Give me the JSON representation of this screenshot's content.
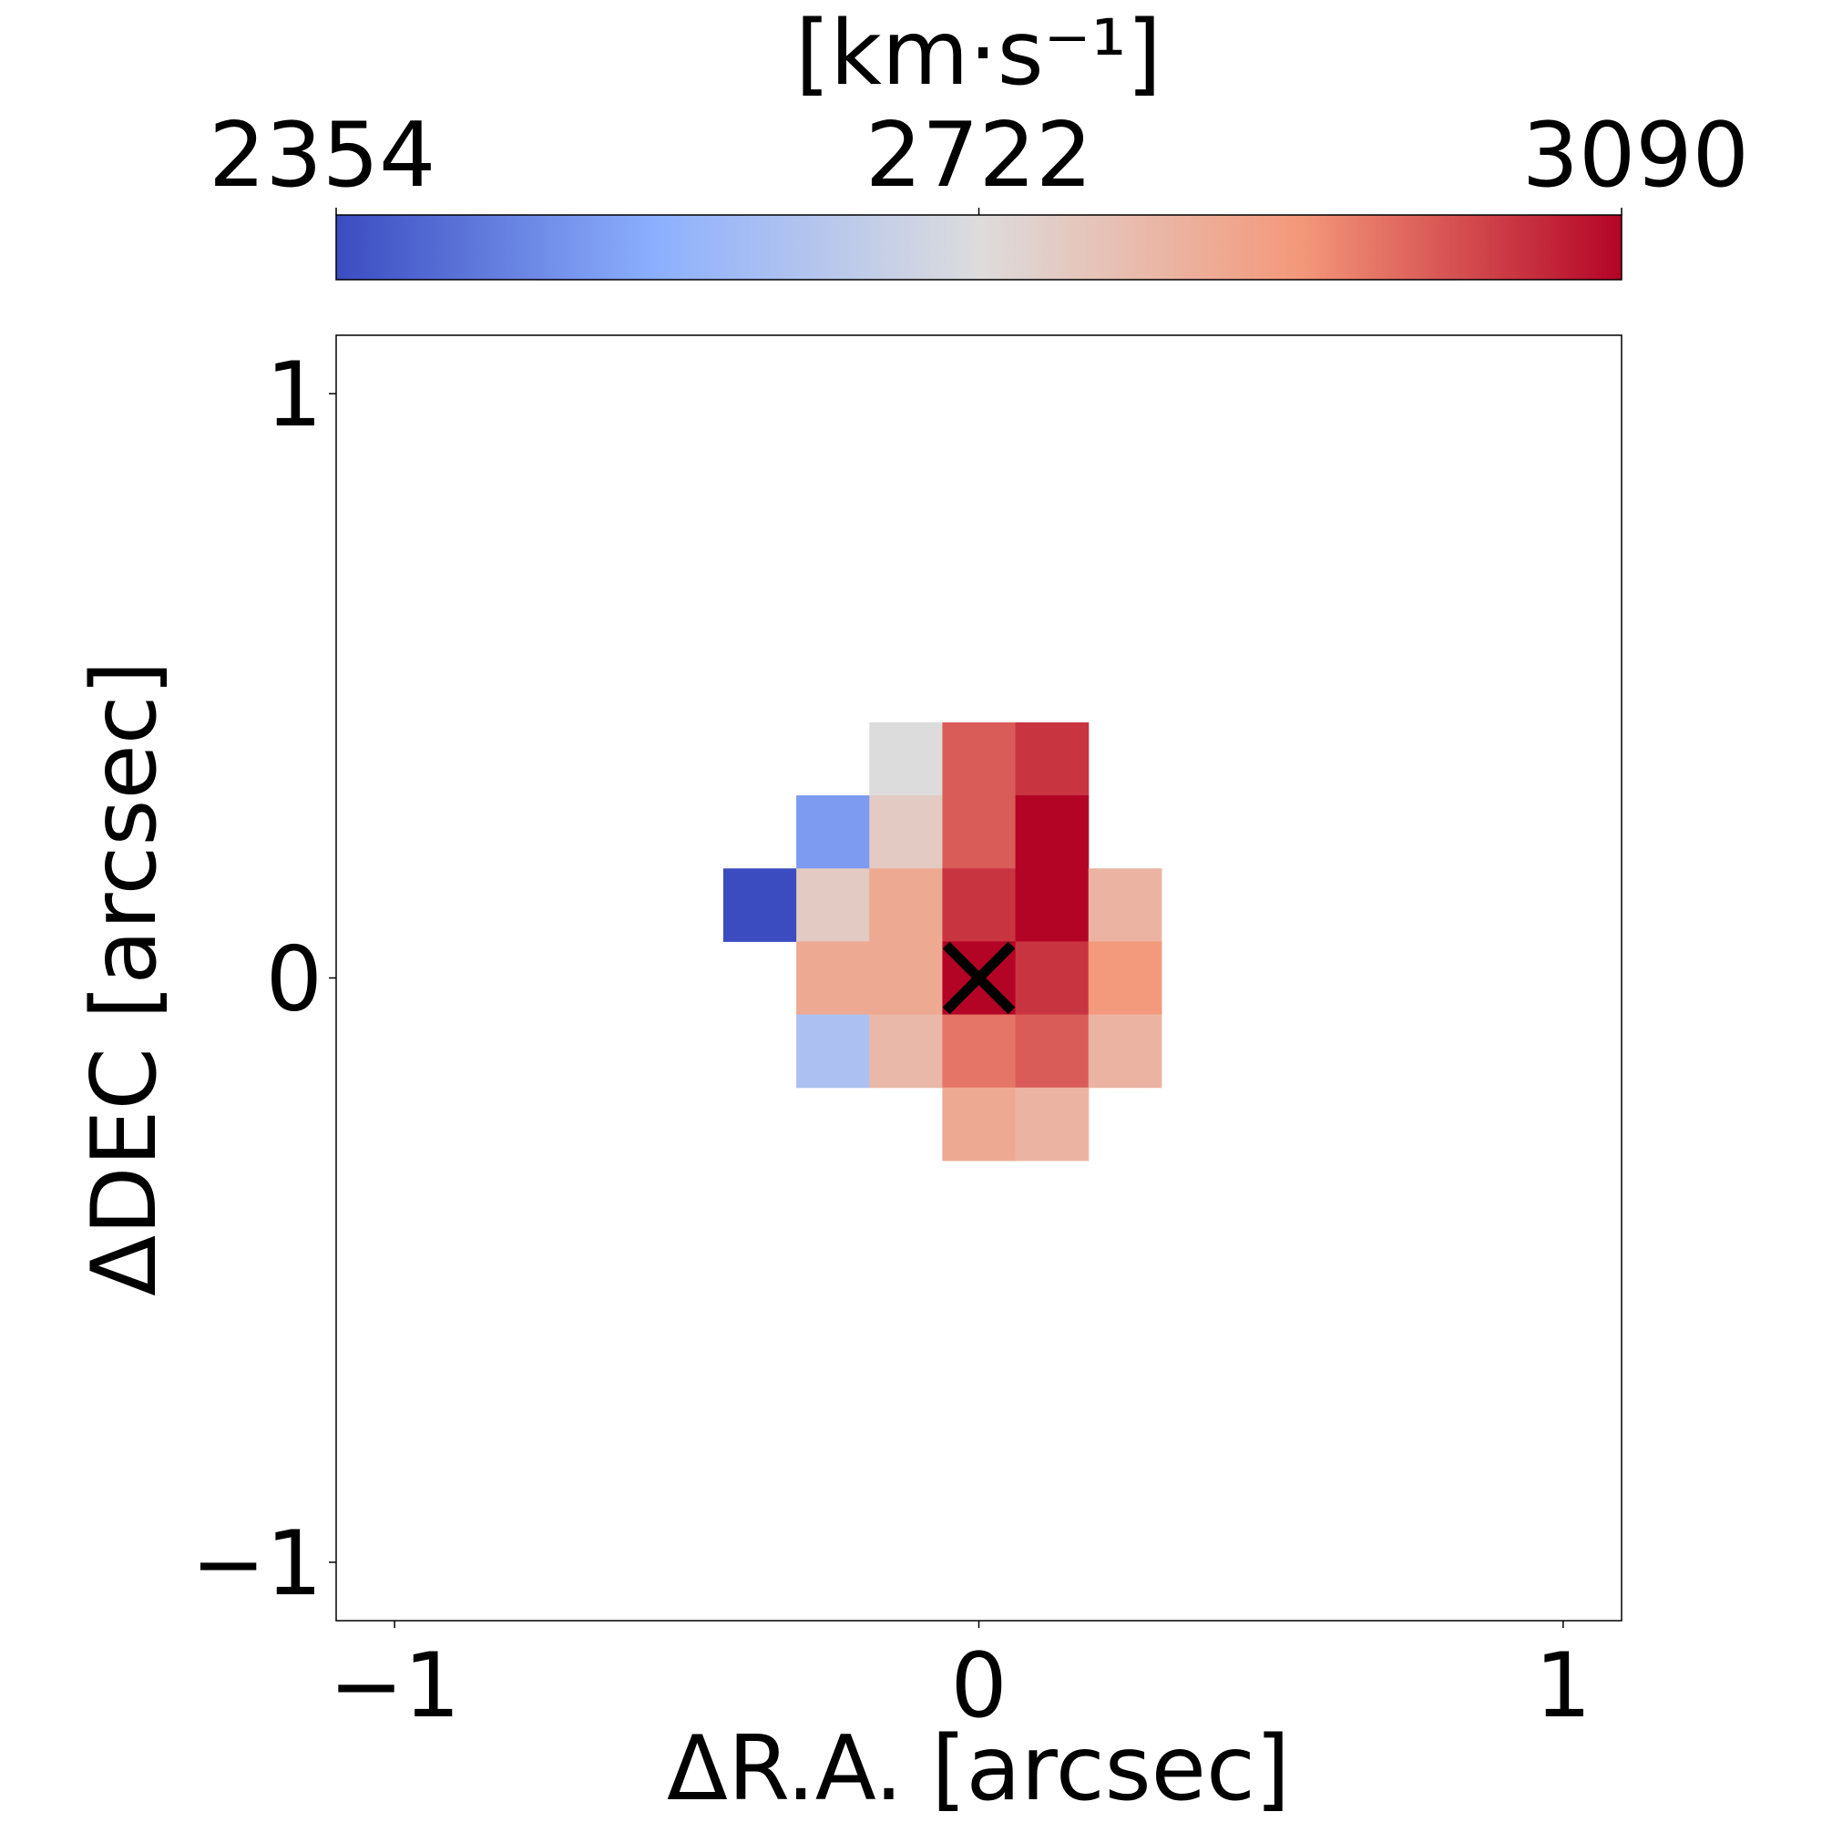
{
  "chart_data": {
    "type": "heatmap",
    "title": "",
    "xlabel": "ΔR.A. [arcsec]",
    "ylabel": "ΔDEC [arcsec]",
    "xlim": [
      -1.1,
      1.1
    ],
    "ylim": [
      -1.1,
      1.1
    ],
    "x_ticks": [
      -1,
      0,
      1
    ],
    "x_tick_labels": [
      "−1",
      "0",
      "1"
    ],
    "y_ticks": [
      -1,
      0,
      1
    ],
    "y_tick_labels": [
      "−1",
      "0",
      "1"
    ],
    "grid": false,
    "pixel_size_arcsec": 0.125,
    "colormap": "coolwarm",
    "colorbar": {
      "label": "[km·s⁻¹]",
      "location": "top",
      "vmin": 2354,
      "vmax": 3090,
      "ticks": [
        2354,
        2722,
        3090
      ],
      "tick_labels": [
        "2354",
        "2722",
        "3090"
      ],
      "colors": [
        "#3b4cc0",
        "#8db0fe",
        "#dddcdc",
        "#f4987a",
        "#b40426"
      ]
    },
    "pixels": [
      {
        "x": -0.375,
        "y": 0.125,
        "value": 2354
      },
      {
        "x": -0.25,
        "y": 0.25,
        "value": 2500
      },
      {
        "x": -0.25,
        "y": 0.125,
        "value": 2770
      },
      {
        "x": -0.25,
        "y": 0.0,
        "value": 2860
      },
      {
        "x": -0.25,
        "y": -0.125,
        "value": 2610
      },
      {
        "x": -0.125,
        "y": 0.375,
        "value": 2722
      },
      {
        "x": -0.125,
        "y": 0.25,
        "value": 2770
      },
      {
        "x": -0.125,
        "y": 0.125,
        "value": 2860
      },
      {
        "x": -0.125,
        "y": 0.0,
        "value": 2860
      },
      {
        "x": -0.125,
        "y": -0.125,
        "value": 2820
      },
      {
        "x": 0.0,
        "y": 0.375,
        "value": 2980
      },
      {
        "x": 0.0,
        "y": 0.25,
        "value": 2980
      },
      {
        "x": 0.0,
        "y": 0.125,
        "value": 3030
      },
      {
        "x": 0.0,
        "y": 0.0,
        "value": 3090
      },
      {
        "x": 0.0,
        "y": -0.125,
        "value": 2950
      },
      {
        "x": 0.0,
        "y": -0.25,
        "value": 2860
      },
      {
        "x": 0.125,
        "y": 0.375,
        "value": 3030
      },
      {
        "x": 0.125,
        "y": 0.25,
        "value": 3090
      },
      {
        "x": 0.125,
        "y": 0.125,
        "value": 3090
      },
      {
        "x": 0.125,
        "y": 0.0,
        "value": 3030
      },
      {
        "x": 0.125,
        "y": -0.125,
        "value": 2980
      },
      {
        "x": 0.125,
        "y": -0.25,
        "value": 2830
      },
      {
        "x": 0.25,
        "y": 0.125,
        "value": 2830
      },
      {
        "x": 0.25,
        "y": 0.0,
        "value": 2900
      },
      {
        "x": 0.25,
        "y": -0.125,
        "value": 2830
      }
    ],
    "markers": [
      {
        "type": "cross",
        "x": 0.0,
        "y": 0.0,
        "color": "#000000"
      }
    ]
  }
}
